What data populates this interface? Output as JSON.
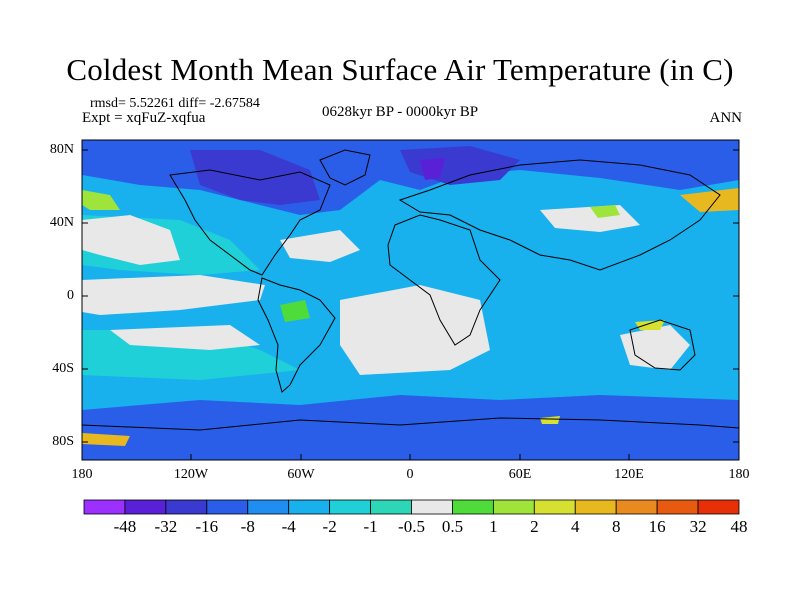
{
  "title": "Coldest Month Mean Surface Air Temperature (in C)",
  "stats": "rmsd= 5.52261 diff= -2.67584",
  "experiment": "Expt = xqFuZ-xqfua",
  "period": "0628kyr BP - 0000kyr BP",
  "season": "ANN",
  "lat_axis": [
    "80N",
    "40N",
    "0",
    "40S",
    "80S"
  ],
  "lon_axis": [
    "180",
    "120W",
    "60W",
    "0",
    "60E",
    "120E",
    "180"
  ],
  "colorbar": {
    "labels": [
      "-48",
      "-32",
      "-16",
      "-8",
      "-4",
      "-2",
      "-1",
      "-0.5",
      "0.5",
      "1",
      "2",
      "4",
      "8",
      "16",
      "32",
      "48"
    ],
    "colors": [
      "#9b30ff",
      "#5a20d8",
      "#3a3ad0",
      "#2a5ee8",
      "#1f8ef0",
      "#19b0ee",
      "#20d0d8",
      "#2ed6b8",
      "#e8e8e8",
      "#4fdc3a",
      "#9ee43a",
      "#d6e030",
      "#e8b820",
      "#e88a20",
      "#e85a10",
      "#e83008"
    ]
  }
}
